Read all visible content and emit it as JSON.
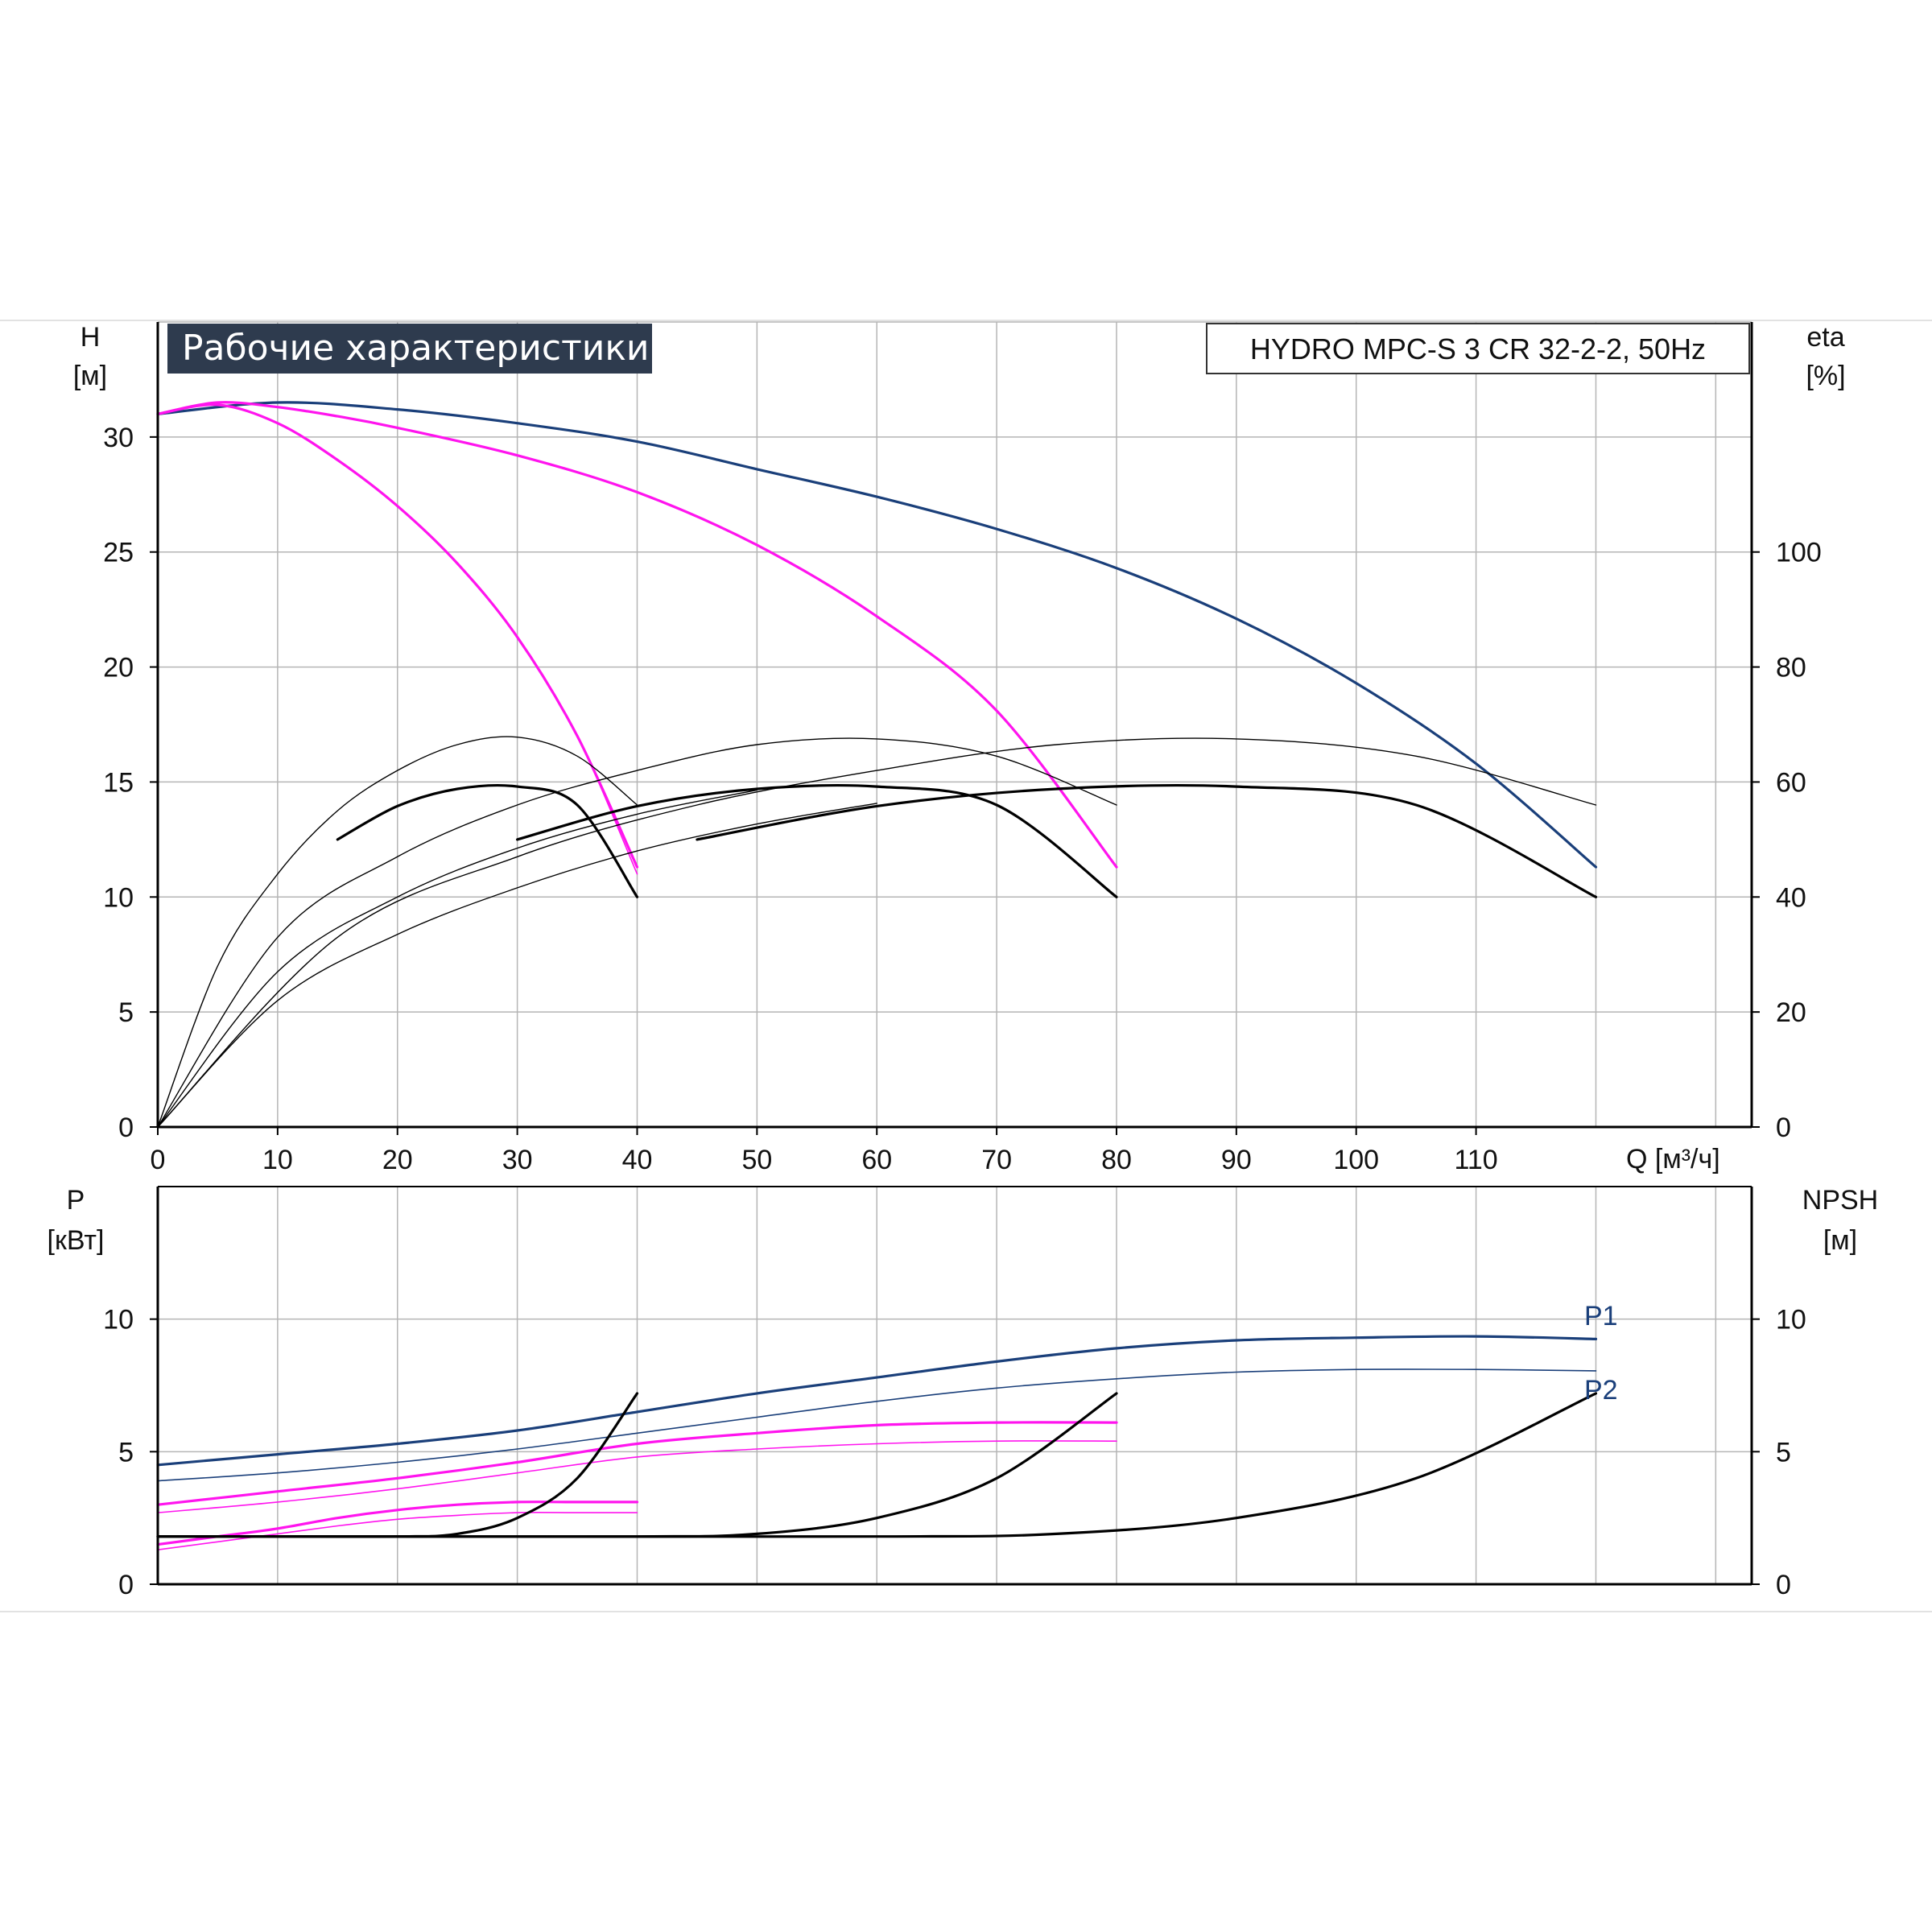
{
  "title": "Рабочие характеристики",
  "model": "HYDRO MPC-S 3 CR 32-2-2, 50Hz",
  "colors": {
    "navy": "#1a3f7a",
    "magenta": "#ff14ee",
    "black": "#000000",
    "title_bg": "#2e3b4e",
    "grid": "#b5b5b5"
  },
  "chart_data": [
    {
      "type": "line",
      "panel": "head-efficiency",
      "xlabel": "Q [м³/ч]",
      "ylabel_left": [
        "H",
        "[м]"
      ],
      "ylabel_right": [
        "eta",
        "[%]"
      ],
      "xlim": [
        0,
        133
      ],
      "ylim_left": [
        0,
        35
      ],
      "ylim_right": [
        0,
        140
      ],
      "x_ticks": [
        0,
        10,
        20,
        30,
        40,
        50,
        60,
        70,
        80,
        90,
        100,
        110
      ],
      "y_ticks_left": [
        0,
        5,
        10,
        15,
        20,
        25,
        30
      ],
      "y_ticks_right": [
        0,
        20,
        40,
        60,
        80,
        100
      ],
      "grid": true,
      "series": [
        {
          "axis": "left",
          "color": "navy",
          "width": 3.2,
          "points": [
            [
              0,
              31
            ],
            [
              10,
              31.5
            ],
            [
              20,
              31.2
            ],
            [
              30,
              30.6
            ],
            [
              40,
              29.8
            ],
            [
              50,
              28.6
            ],
            [
              60,
              27.4
            ],
            [
              70,
              26
            ],
            [
              80,
              24.3
            ],
            [
              90,
              22.1
            ],
            [
              100,
              19.3
            ],
            [
              110,
              15.8
            ],
            [
              120,
              11.3
            ]
          ]
        },
        {
          "axis": "left",
          "color": "magenta",
          "width": 3.2,
          "points": [
            [
              0,
              31
            ],
            [
              5,
              31.5
            ],
            [
              10,
              31.3
            ],
            [
              15,
              30.9
            ],
            [
              20,
              30.4
            ],
            [
              30,
              29.2
            ],
            [
              40,
              27.6
            ],
            [
              50,
              25.3
            ],
            [
              60,
              22.2
            ],
            [
              70,
              18.1
            ],
            [
              80,
              11.3
            ]
          ]
        },
        {
          "axis": "left",
          "color": "magenta",
          "width": 3.2,
          "points": [
            [
              0,
              31
            ],
            [
              5,
              31.4
            ],
            [
              10,
              30.6
            ],
            [
              15,
              29
            ],
            [
              20,
              27
            ],
            [
              25,
              24.5
            ],
            [
              30,
              21.3
            ],
            [
              35,
              17
            ],
            [
              40,
              11.3
            ]
          ]
        },
        {
          "axis": "left",
          "color": "magenta",
          "width": 1.6,
          "points": [
            [
              0,
              31
            ],
            [
              5,
              31.4
            ],
            [
              10,
              30.6
            ],
            [
              15,
              29
            ],
            [
              20,
              27
            ],
            [
              25,
              24.5
            ],
            [
              30,
              21.3
            ],
            [
              35,
              17
            ],
            [
              40,
              11
            ]
          ]
        },
        {
          "axis": "right",
          "color": "black",
          "width": 1.4,
          "points": [
            [
              0,
              0
            ],
            [
              5,
              28
            ],
            [
              10,
              44
            ],
            [
              15,
              55
            ],
            [
              20,
              62
            ],
            [
              25,
              66.5
            ],
            [
              30,
              67.8
            ],
            [
              35,
              64.5
            ],
            [
              40,
              56
            ]
          ]
        },
        {
          "axis": "right",
          "color": "black",
          "width": 3.2,
          "points": [
            [
              15,
              50
            ],
            [
              20,
              55.8
            ],
            [
              25,
              58.8
            ],
            [
              30,
              59.2
            ],
            [
              35,
              56
            ],
            [
              40,
              40
            ]
          ]
        },
        {
          "axis": "right",
          "color": "black",
          "width": 1.4,
          "points": [
            [
              0,
              0
            ],
            [
              10,
              33
            ],
            [
              20,
              47
            ],
            [
              30,
              56
            ],
            [
              40,
              62
            ],
            [
              50,
              66.5
            ],
            [
              60,
              67.5
            ],
            [
              70,
              64.5
            ],
            [
              80,
              56
            ]
          ]
        },
        {
          "axis": "right",
          "color": "black",
          "width": 3.2,
          "points": [
            [
              30,
              50
            ],
            [
              40,
              55.8
            ],
            [
              50,
              58.8
            ],
            [
              60,
              59.2
            ],
            [
              70,
              56
            ],
            [
              80,
              40
            ]
          ]
        },
        {
          "axis": "right",
          "color": "black",
          "width": 1.4,
          "points": [
            [
              0,
              0
            ],
            [
              15,
              33
            ],
            [
              30,
              47
            ],
            [
              45,
              56
            ],
            [
              60,
              62
            ],
            [
              75,
              66.5
            ],
            [
              90,
              67.5
            ],
            [
              105,
              64.5
            ],
            [
              120,
              56
            ]
          ]
        },
        {
          "axis": "right",
          "color": "black",
          "width": 3.2,
          "points": [
            [
              45,
              50
            ],
            [
              60,
              55.8
            ],
            [
              75,
              58.8
            ],
            [
              90,
              59.2
            ],
            [
              105,
              56
            ],
            [
              120,
              40
            ]
          ]
        },
        {
          "axis": "right",
          "color": "black",
          "width": 1.4,
          "points": [
            [
              0,
              0
            ],
            [
              10,
              27
            ],
            [
              20,
              40
            ],
            [
              30,
              48.5
            ],
            [
              40,
              54.4
            ],
            [
              50,
              58.6
            ]
          ]
        },
        {
          "axis": "right",
          "color": "black",
          "width": 1.4,
          "points": [
            [
              0,
              0
            ],
            [
              10,
              22
            ],
            [
              20,
              33.5
            ],
            [
              30,
              41.6
            ],
            [
              40,
              48
            ],
            [
              50,
              52.7
            ],
            [
              60,
              56.3
            ]
          ]
        }
      ]
    },
    {
      "type": "line",
      "panel": "power-npsh",
      "ylabel_left": [
        "P",
        "[кВт]"
      ],
      "ylabel_right": [
        "NPSH",
        "[м]"
      ],
      "xlim": [
        0,
        133
      ],
      "ylim_left": [
        0,
        15
      ],
      "ylim_right": [
        0,
        15
      ],
      "y_ticks_left": [
        0,
        5,
        10
      ],
      "y_ticks_right": [
        0,
        5,
        10
      ],
      "grid": true,
      "legend": [
        "P1",
        "P2"
      ],
      "series": [
        {
          "name": "P1",
          "axis": "left",
          "color": "navy",
          "width": 3.2,
          "points": [
            [
              0,
              4.5
            ],
            [
              10,
              4.9
            ],
            [
              20,
              5.3
            ],
            [
              30,
              5.8
            ],
            [
              40,
              6.5
            ],
            [
              50,
              7.2
            ],
            [
              60,
              7.8
            ],
            [
              70,
              8.4
            ],
            [
              80,
              8.9
            ],
            [
              90,
              9.2
            ],
            [
              100,
              9.3
            ],
            [
              110,
              9.35
            ],
            [
              120,
              9.25
            ]
          ]
        },
        {
          "name": "P2",
          "axis": "left",
          "color": "navy",
          "width": 1.6,
          "points": [
            [
              0,
              3.9
            ],
            [
              10,
              4.2
            ],
            [
              20,
              4.6
            ],
            [
              30,
              5.1
            ],
            [
              40,
              5.7
            ],
            [
              50,
              6.3
            ],
            [
              60,
              6.9
            ],
            [
              70,
              7.4
            ],
            [
              80,
              7.75
            ],
            [
              90,
              8
            ],
            [
              100,
              8.1
            ],
            [
              110,
              8.1
            ],
            [
              120,
              8.05
            ]
          ]
        },
        {
          "axis": "left",
          "color": "magenta",
          "width": 3.2,
          "points": [
            [
              0,
              3
            ],
            [
              10,
              3.5
            ],
            [
              20,
              4
            ],
            [
              30,
              4.6
            ],
            [
              40,
              5.3
            ],
            [
              50,
              5.7
            ],
            [
              60,
              6
            ],
            [
              70,
              6.1
            ],
            [
              80,
              6.1
            ]
          ]
        },
        {
          "axis": "left",
          "color": "magenta",
          "width": 1.6,
          "points": [
            [
              0,
              2.7
            ],
            [
              10,
              3.1
            ],
            [
              20,
              3.6
            ],
            [
              30,
              4.2
            ],
            [
              40,
              4.8
            ],
            [
              50,
              5.1
            ],
            [
              60,
              5.3
            ],
            [
              70,
              5.4
            ],
            [
              80,
              5.4
            ]
          ]
        },
        {
          "axis": "left",
          "color": "magenta",
          "width": 3.2,
          "points": [
            [
              0,
              1.5
            ],
            [
              5,
              1.8
            ],
            [
              10,
              2.1
            ],
            [
              15,
              2.5
            ],
            [
              20,
              2.8
            ],
            [
              25,
              3
            ],
            [
              30,
              3.1
            ],
            [
              35,
              3.1
            ],
            [
              40,
              3.1
            ]
          ]
        },
        {
          "axis": "left",
          "color": "magenta",
          "width": 1.6,
          "points": [
            [
              0,
              1.3
            ],
            [
              5,
              1.6
            ],
            [
              10,
              1.9
            ],
            [
              15,
              2.2
            ],
            [
              20,
              2.45
            ],
            [
              25,
              2.6
            ],
            [
              30,
              2.7
            ],
            [
              35,
              2.7
            ],
            [
              40,
              2.7
            ]
          ]
        },
        {
          "axis": "right",
          "color": "black",
          "width": 3.2,
          "points": [
            [
              0,
              1.8
            ],
            [
              10,
              1.8
            ],
            [
              20,
              1.8
            ],
            [
              25,
              1.9
            ],
            [
              30,
              2.5
            ],
            [
              35,
              4
            ],
            [
              40,
              7.2
            ]
          ]
        },
        {
          "axis": "right",
          "color": "black",
          "width": 3.2,
          "points": [
            [
              0,
              1.8
            ],
            [
              20,
              1.8
            ],
            [
              40,
              1.8
            ],
            [
              50,
              1.9
            ],
            [
              60,
              2.5
            ],
            [
              70,
              4
            ],
            [
              80,
              7.2
            ]
          ]
        },
        {
          "axis": "right",
          "color": "black",
          "width": 3.2,
          "points": [
            [
              0,
              1.8
            ],
            [
              30,
              1.8
            ],
            [
              60,
              1.8
            ],
            [
              75,
              1.9
            ],
            [
              90,
              2.5
            ],
            [
              105,
              4
            ],
            [
              120,
              7.2
            ]
          ]
        }
      ]
    }
  ]
}
